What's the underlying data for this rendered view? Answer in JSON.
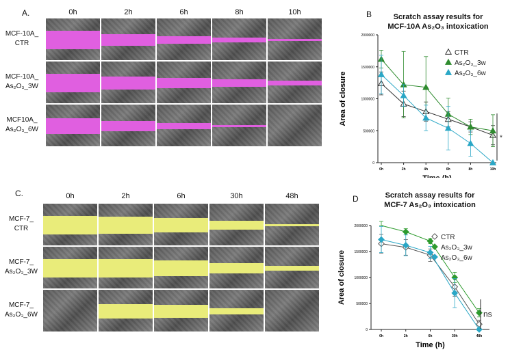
{
  "panels": {
    "A": {
      "letter": "A.",
      "timepoints": [
        "0h",
        "2h",
        "6h",
        "8h",
        "10h"
      ],
      "rows": [
        {
          "line1": "MCF-10A_",
          "line2": "CTR",
          "gap": [
            1.0,
            0.65,
            0.4,
            0.3,
            0.12
          ]
        },
        {
          "line1": "MCF-10A_",
          "line2": "As₂O₃_3W",
          "gap": [
            1.0,
            0.75,
            0.55,
            0.45,
            0.3
          ]
        },
        {
          "line1": "MCF10A_",
          "line2": "As₂O₃_6W",
          "gap": [
            0.9,
            0.55,
            0.35,
            0.1,
            0.0
          ]
        }
      ],
      "overlay_color": "#e05fe0"
    },
    "C": {
      "letter": "C.",
      "timepoints": [
        "0h",
        "2h",
        "6h",
        "30h",
        "48h"
      ],
      "rows": [
        {
          "line1": "MCF-7_",
          "line2": "CTR",
          "gap": [
            1.0,
            0.95,
            0.8,
            0.5,
            0.1
          ]
        },
        {
          "line1": "MCF-7_",
          "line2": "As₂O₃_3W",
          "gap": [
            1.0,
            1.0,
            0.9,
            0.6,
            0.25
          ]
        },
        {
          "line1": "MCF-7_",
          "line2": "As₂O₃_6W",
          "gap": [
            0.0,
            0.8,
            0.75,
            0.35,
            0.0
          ]
        }
      ],
      "overlay_color": "#e9ec7a"
    }
  },
  "chart_data": [
    {
      "panel_letter": "B",
      "type": "line",
      "title_line1": "Scratch assay results for",
      "title_line2": "MCF-10A As₂O₃ intoxication",
      "xlabel": "Time (h)",
      "ylabel": "Area of closure",
      "categories": [
        "0h",
        "2h",
        "4h",
        "6h",
        "8h",
        "10h"
      ],
      "yticks": [
        "0",
        "500000",
        "1000000",
        "1500000",
        "2000000"
      ],
      "ylim": [
        0,
        2000000
      ],
      "significance": "*",
      "series": [
        {
          "name": "CTR",
          "legend": "CTR",
          "marker": "open-triangle",
          "color": "#333333",
          "values": [
            1240000,
            920000,
            800000,
            680000,
            560000,
            430000
          ],
          "errors": [
            180000,
            200000,
            150000,
            120000,
            80000,
            150000
          ]
        },
        {
          "name": "As2O3_3w",
          "legend": "As₂O₃_3w",
          "marker": "triangle",
          "color": "#2e8b2e",
          "values": [
            1620000,
            1220000,
            1180000,
            760000,
            560000,
            500000
          ],
          "errors": [
            140000,
            520000,
            480000,
            250000,
            120000,
            250000
          ]
        },
        {
          "name": "As2O3_6w",
          "legend": "As₂O₃_6w",
          "marker": "triangle",
          "color": "#2aa7c6",
          "values": [
            1380000,
            1050000,
            700000,
            540000,
            300000,
            0
          ],
          "errors": [
            300000,
            170000,
            200000,
            340000,
            200000,
            0
          ]
        }
      ]
    },
    {
      "panel_letter": "D",
      "type": "line",
      "title_line1": "Scratch assay results for",
      "title_line2": "MCF-7 As₂O₃ intoxication",
      "xlabel": "Time (h)",
      "ylabel": "Area of closure",
      "categories": [
        "0h",
        "2h",
        "6h",
        "30h",
        "48h"
      ],
      "yticks": [
        "0",
        "500000",
        "1000000",
        "1500000",
        "2000000"
      ],
      "ylim": [
        0,
        2000000
      ],
      "significance": "ns",
      "series": [
        {
          "name": "CTR",
          "legend": "CTR",
          "marker": "open-diamond",
          "color": "#555555",
          "values": [
            1650000,
            1580000,
            1430000,
            820000,
            100000
          ],
          "errors": [
            180000,
            150000,
            120000,
            180000,
            80000
          ]
        },
        {
          "name": "As2O3_3w",
          "legend": "As₂O₃_3w",
          "marker": "diamond",
          "color": "#2e9b2e",
          "values": [
            2200000,
            1880000,
            1700000,
            1000000,
            320000
          ],
          "errors": [
            120000,
            60000,
            50000,
            100000,
            80000
          ]
        },
        {
          "name": "As2O3_6w",
          "legend": "As₂O₃_6w",
          "marker": "diamond",
          "color": "#2aa7c6",
          "values": [
            1730000,
            1620000,
            1480000,
            700000,
            0
          ],
          "errors": [
            250000,
            200000,
            120000,
            280000,
            0
          ]
        }
      ]
    }
  ]
}
